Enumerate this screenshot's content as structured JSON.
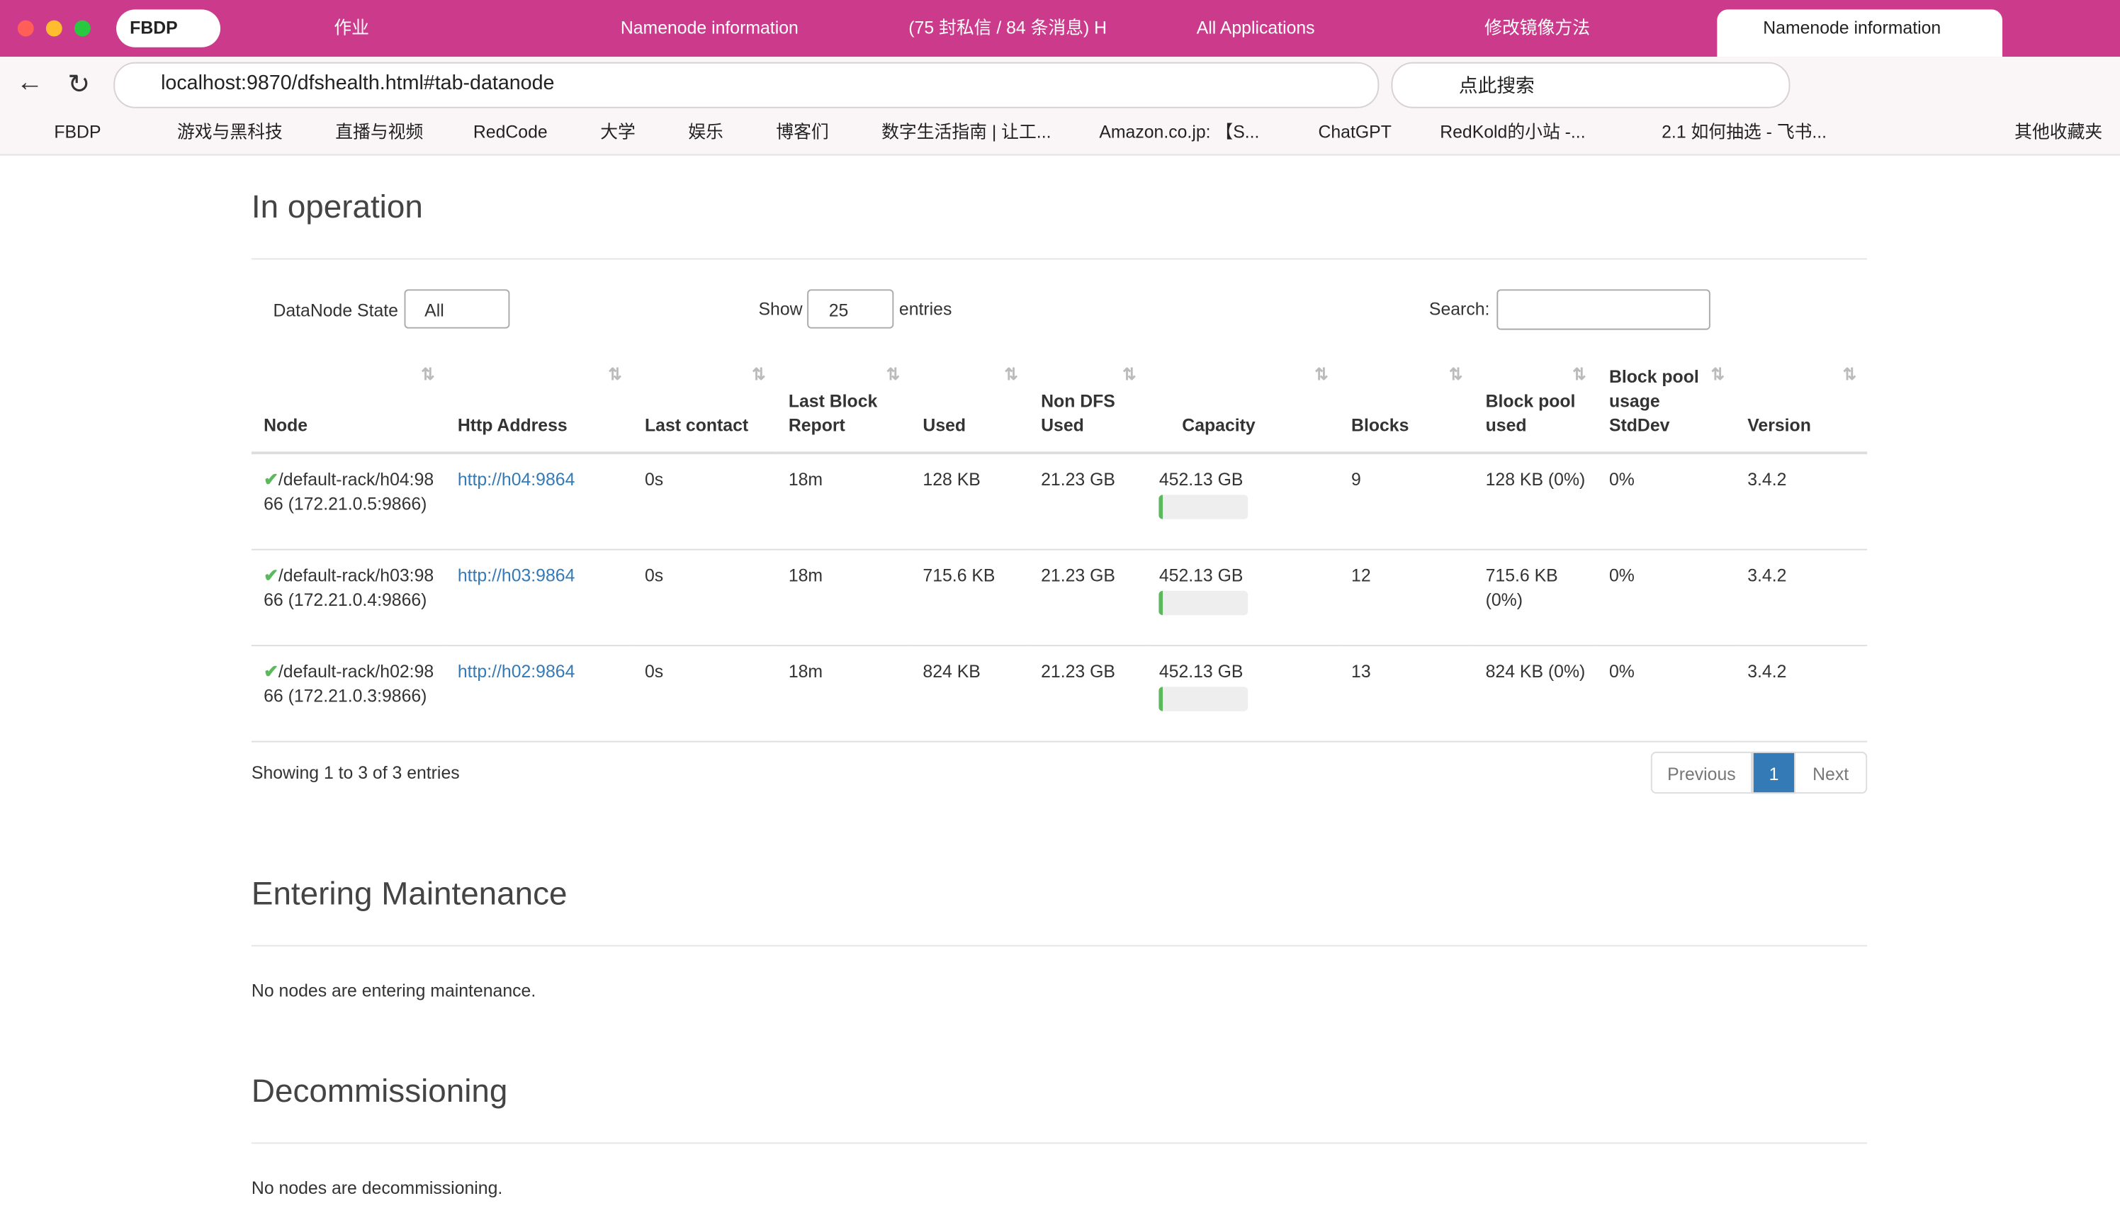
{
  "browser": {
    "tabs": [
      "FBDP",
      "作业",
      "Namenode information",
      "(75 封私信 / 84 条消息) H",
      "All Applications",
      "修改镜像方法",
      "Namenode information"
    ],
    "address": "localhost:9870/dfshealth.html#tab-datanode",
    "search_placeholder": "点此搜索",
    "bookmarks": [
      "FBDP",
      "游戏与黑科技",
      "直播与视频",
      "RedCode",
      "大学",
      "娱乐",
      "博客们",
      "数字生活指南 | 让工...",
      "Amazon.co.jp: 【S...",
      "ChatGPT",
      "RedKold的小站 -...",
      "2.1 如何抽选 - 飞书..."
    ],
    "other_bookmarks": "其他收藏夹"
  },
  "in_operation": {
    "title": "In operation",
    "state_label": "DataNode State",
    "state_value": "All",
    "show_label": "Show",
    "show_value": "25",
    "entries_label": "entries",
    "search_label": "Search:",
    "columns": [
      "Node",
      "Http Address",
      "Last contact",
      "Last Block Report",
      "Used",
      "Non DFS Used",
      "Capacity",
      "Blocks",
      "Block pool used",
      "Block pool usage StdDev",
      "Version"
    ],
    "rows": [
      [
        "/default-rack/h04:9866 (172.21.0.5:9866)",
        "http://h04:9864",
        "0s",
        "18m",
        "128 KB",
        "21.23 GB",
        "452.13 GB",
        "9",
        "128 KB (0%)",
        "0%",
        "3.4.2"
      ],
      [
        "/default-rack/h03:9866 (172.21.0.4:9866)",
        "http://h03:9864",
        "0s",
        "18m",
        "715.6 KB",
        "21.23 GB",
        "452.13 GB",
        "12",
        "715.6 KB (0%)",
        "0%",
        "3.4.2"
      ],
      [
        "/default-rack/h02:9866 (172.21.0.3:9866)",
        "http://h02:9864",
        "0s",
        "18m",
        "824 KB",
        "21.23 GB",
        "452.13 GB",
        "13",
        "824 KB (0%)",
        "0%",
        "3.4.2"
      ]
    ],
    "info": "Showing 1 to 3 of 3 entries",
    "pagination": [
      "Previous",
      "1",
      "Next"
    ]
  },
  "entering_maintenance": {
    "title": "Entering Maintenance",
    "message": "No nodes are entering maintenance."
  },
  "decommissioning": {
    "title": "Decommissioning",
    "message": "No nodes are decommissioning."
  }
}
